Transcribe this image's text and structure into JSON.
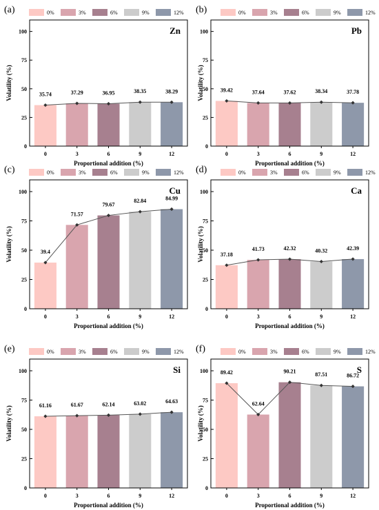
{
  "colors": [
    "#FDC9C4",
    "#D9A5AE",
    "#A7808F",
    "#CCCCCC",
    "#8E98AA"
  ],
  "legend": [
    "0%",
    "3%",
    "6%",
    "9%",
    "12%"
  ],
  "chart_data": [
    {
      "type": "bar",
      "panel": "(a)",
      "element": "Zn",
      "categories": [
        "0",
        "3",
        "6",
        "9",
        "12"
      ],
      "values": [
        35.74,
        37.29,
        36.95,
        38.35,
        38.29
      ],
      "data_labels": [
        "35.74",
        "37.29",
        "36.95",
        "38.35",
        "38.29"
      ],
      "xlabel": "Proportional addition  (%)",
      "ylabel": "Volatility (%)",
      "ylim": [
        0,
        110
      ],
      "yticks": [
        "0",
        "25",
        "50",
        "75",
        "100"
      ],
      "line_overlay": true,
      "legend_position": "top"
    },
    {
      "type": "bar",
      "panel": "(b)",
      "element": "Pb",
      "categories": [
        "0",
        "3",
        "6",
        "9",
        "12"
      ],
      "values": [
        39.42,
        37.64,
        37.62,
        38.34,
        37.78
      ],
      "data_labels": [
        "39.42",
        "37.64",
        "37.62",
        "38.34",
        "37.78"
      ],
      "xlabel": "Proportional addition  (%)",
      "ylabel": "Volatility (%)",
      "ylim": [
        0,
        110
      ],
      "yticks": [
        "0",
        "25",
        "50",
        "75",
        "100"
      ],
      "line_overlay": true,
      "legend_position": "top"
    },
    {
      "type": "bar",
      "panel": "(c)",
      "element": "Cu",
      "categories": [
        "0",
        "3",
        "6",
        "9",
        "12"
      ],
      "values": [
        39.4,
        71.57,
        79.67,
        82.84,
        84.99
      ],
      "data_labels": [
        "39.4",
        "71.57",
        "79.67",
        "82.84",
        "84.99"
      ],
      "xlabel": "Proportional addition  (%)",
      "ylabel": "Volatility (%)",
      "ylim": [
        0,
        110
      ],
      "yticks": [
        "0",
        "25",
        "50",
        "75",
        "100"
      ],
      "line_overlay": true,
      "legend_position": "top"
    },
    {
      "type": "bar",
      "panel": "(d)",
      "element": "Ca",
      "categories": [
        "0",
        "3",
        "6",
        "9",
        "12"
      ],
      "values": [
        37.18,
        41.73,
        42.32,
        40.32,
        42.39
      ],
      "data_labels": [
        "37.18",
        "41.73",
        "42.32",
        "40.32",
        "42.39"
      ],
      "xlabel": "Proportional addition  (%)",
      "ylabel": "Volatility (%)",
      "ylim": [
        0,
        110
      ],
      "yticks": [
        "0",
        "25",
        "50",
        "75",
        "100"
      ],
      "line_overlay": true,
      "legend_position": "top"
    },
    {
      "type": "bar",
      "panel": "(e)",
      "element": "Si",
      "categories": [
        "0",
        "3",
        "6",
        "9",
        "12"
      ],
      "values": [
        61.16,
        61.67,
        62.14,
        63.02,
        64.63
      ],
      "data_labels": [
        "61.16",
        "61.67",
        "62.14",
        "63.02",
        "64.63"
      ],
      "xlabel": "Proportional addition  (%)",
      "ylabel": "Volatility (%)",
      "ylim": [
        0,
        110
      ],
      "yticks": [
        "0",
        "25",
        "50",
        "75",
        "100"
      ],
      "line_overlay": true,
      "legend_position": "top"
    },
    {
      "type": "bar",
      "panel": "(f)",
      "element": "S",
      "categories": [
        "0",
        "3",
        "6",
        "9",
        "12"
      ],
      "values": [
        89.42,
        62.64,
        90.21,
        87.51,
        86.72
      ],
      "data_labels": [
        "89.42",
        "62.64",
        "90.21",
        "87.51",
        "86.72"
      ],
      "xlabel": "Proportional addition  (%)",
      "ylabel": "Volatility (%)",
      "ylim": [
        0,
        110
      ],
      "yticks": [
        "0",
        "25",
        "50",
        "75",
        "100"
      ],
      "line_overlay": true,
      "legend_position": "top"
    }
  ]
}
